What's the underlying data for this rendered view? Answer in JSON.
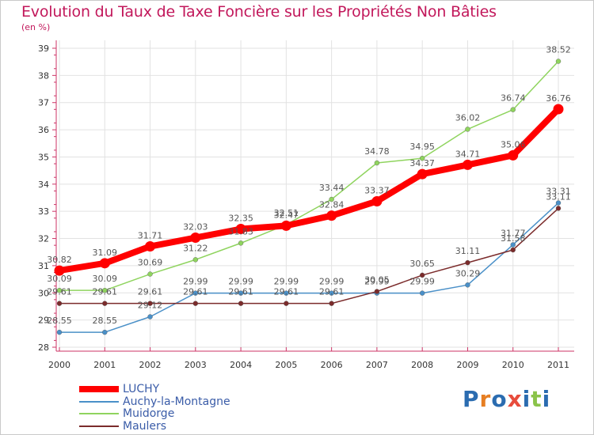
{
  "title": "Evolution du Taux de Taxe Foncière sur les Propriétés Non Bâties",
  "unit": "(en %)",
  "logo": {
    "text": "Proxiti",
    "colors": [
      "#2b6cb0",
      "#e67e22",
      "#2b6cb0",
      "#e74c3c",
      "#2b6cb0",
      "#8bc34a",
      "#2b6cb0"
    ]
  },
  "chart_data": {
    "type": "line",
    "x": [
      "2000",
      "2001",
      "2002",
      "2003",
      "2004",
      "2005",
      "2006",
      "2007",
      "2008",
      "2009",
      "2010",
      "2011"
    ],
    "ylim": [
      28,
      39
    ],
    "yticks": [
      "28",
      "29",
      "30",
      "31",
      "32",
      "33",
      "34",
      "35",
      "36",
      "37",
      "38",
      "39"
    ],
    "grid": true,
    "legend_position": "bottom-left",
    "series": [
      {
        "name": "LUCHY",
        "color": "#ff0000",
        "values": [
          30.82,
          31.09,
          31.71,
          32.03,
          32.35,
          32.47,
          32.84,
          33.37,
          34.37,
          34.71,
          35.06,
          36.76
        ],
        "labels": [
          "30.82",
          "31.09",
          "31.71",
          "32.03",
          "32.35",
          "32.47",
          "32.84",
          "33.37",
          "34.37",
          "34.71",
          "35.06",
          "36.76"
        ]
      },
      {
        "name": "Auchy-la-Montagne",
        "color": "#4a90c8",
        "values": [
          28.55,
          28.55,
          29.12,
          29.99,
          29.99,
          29.99,
          29.99,
          29.99,
          29.99,
          30.29,
          31.77,
          33.31
        ],
        "labels": [
          "28.55",
          "28.55",
          "29.12",
          "29.99",
          "29.99",
          "29.99",
          "29.99",
          "29.99",
          "29.99",
          "30.29",
          "31.77",
          "33.31"
        ]
      },
      {
        "name": "Muidorge",
        "color": "#8fd45e",
        "values": [
          30.09,
          30.09,
          30.69,
          31.22,
          31.83,
          32.51,
          33.44,
          34.78,
          34.95,
          36.02,
          36.74,
          38.52
        ],
        "labels": [
          "30.09",
          "30.09",
          "30.69",
          "31.22",
          "31.83",
          "32.51",
          "33.44",
          "34.78",
          "34.95",
          "36.02",
          "36.74",
          "38.52"
        ]
      },
      {
        "name": "Maulers",
        "color": "#7b2b2b",
        "values": [
          29.61,
          29.61,
          29.61,
          29.61,
          29.61,
          29.61,
          29.61,
          30.05,
          30.65,
          31.11,
          31.58,
          33.11
        ],
        "labels": [
          "29.61",
          "29.61",
          "29.61",
          "29.61",
          "29.61",
          "29.61",
          "29.61",
          "30.05",
          "30.65",
          "31.11",
          "31.58",
          "33.11"
        ]
      }
    ]
  }
}
